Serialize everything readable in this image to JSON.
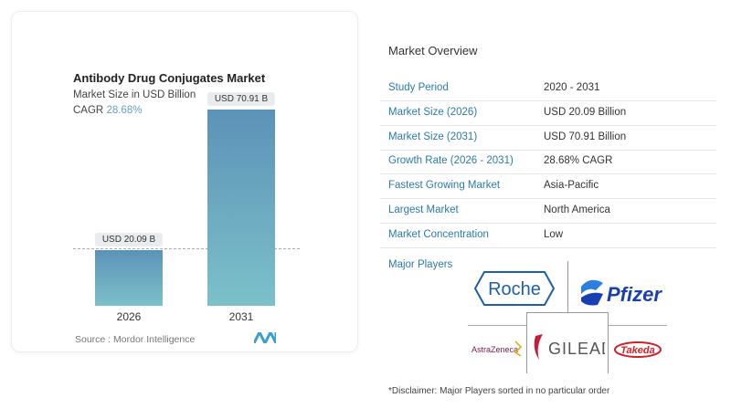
{
  "chart_data": {
    "type": "bar",
    "title": "Antibody Drug Conjugates Market",
    "subtitle": "Market Size in USD Billion",
    "cagr_label": "CAGR",
    "cagr_value": "28.68%",
    "categories": [
      "2026",
      "2031"
    ],
    "values": [
      20.09,
      70.91
    ],
    "data_labels": [
      "USD 20.09 B",
      "USD 70.91 B"
    ],
    "ylim": [
      0,
      70.91
    ],
    "grid": false,
    "bar_color_top": "#5c92b8",
    "bar_color_bottom": "#7cc1c9"
  },
  "source": "Source :  Mordor Intelligence",
  "overview": {
    "title": "Market Overview",
    "rows": [
      {
        "k": "Study Period",
        "v": "2020 - 2031"
      },
      {
        "k": "Market Size (2026)",
        "v": "USD 20.09 Billion"
      },
      {
        "k": "Market Size (2031)",
        "v": "USD 70.91 Billion"
      },
      {
        "k": "Growth Rate (2026 - 2031)",
        "v": "28.68% CAGR"
      },
      {
        "k": "Fastest Growing Market",
        "v": "Asia-Pacific"
      },
      {
        "k": "Largest Market",
        "v": "North America"
      },
      {
        "k": "Market Concentration",
        "v": "Low"
      }
    ]
  },
  "players": {
    "title": "Major Players",
    "logos": [
      "Roche",
      "Pfizer",
      "AstraZeneca",
      "GILEAD",
      "Takeda"
    ]
  },
  "disclaimer": "*Disclaimer: Major Players sorted in no particular order"
}
